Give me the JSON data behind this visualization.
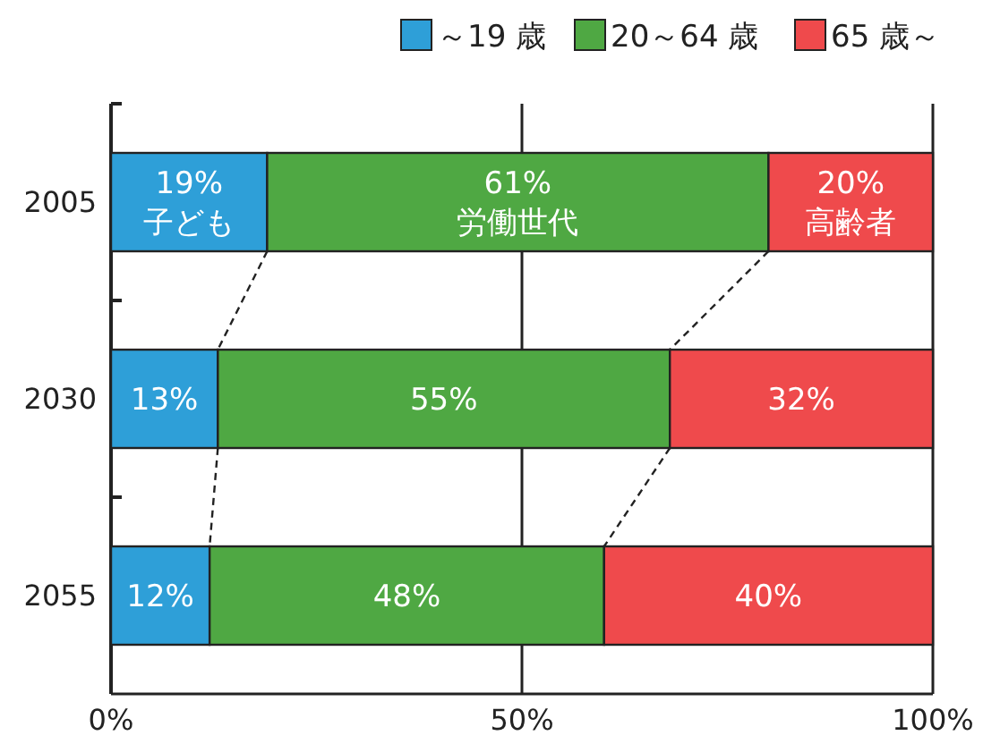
{
  "chart_data": {
    "type": "bar",
    "orientation": "horizontal",
    "stacked": true,
    "categories": [
      "2005",
      "2030",
      "2055"
    ],
    "series": [
      {
        "name": "～19 歳",
        "color": "#2e9fd8",
        "values": [
          19,
          13,
          12
        ],
        "value_labels": [
          "19%\n子ども",
          "13%",
          "12%"
        ]
      },
      {
        "name": "20～64 歳",
        "color": "#4fa843",
        "values": [
          61,
          55,
          48
        ],
        "value_labels": [
          "61%\n労働世代",
          "55%",
          "48%"
        ]
      },
      {
        "name": "65 歳～",
        "color": "#ef4a4c",
        "values": [
          20,
          32,
          40
        ],
        "value_labels": [
          "20%\n高齢者",
          "32%",
          "40%"
        ]
      }
    ],
    "xlim": [
      0,
      100
    ],
    "xticks": [
      {
        "value": 0,
        "label": "0%"
      },
      {
        "value": 50,
        "label": "50%"
      },
      {
        "value": 100,
        "label": "100%"
      }
    ],
    "grid": "x",
    "legend": "top right"
  }
}
